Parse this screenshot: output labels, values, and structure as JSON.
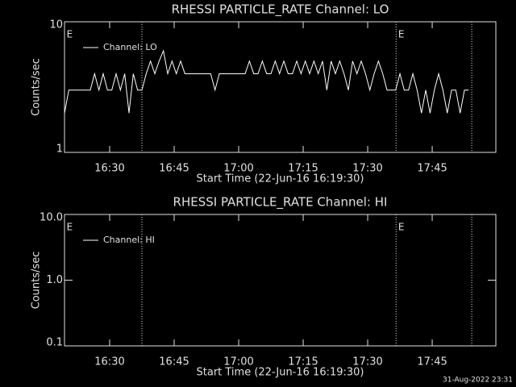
{
  "chart_data": [
    {
      "type": "line",
      "title": "RHESSI PARTICLE_RATE Channel: LO",
      "xlabel": "Start Time (22-Jun-16 16:19:30)",
      "ylabel": "Counts/sec",
      "log_y": true,
      "xlim": [
        0,
        100.3
      ],
      "ylim": [
        1,
        10
      ],
      "xticks": [
        {
          "value": 10.5,
          "label": "16:30"
        },
        {
          "value": 25.5,
          "label": "16:45"
        },
        {
          "value": 40.5,
          "label": "17:00"
        },
        {
          "value": 55.5,
          "label": "17:15"
        },
        {
          "value": 70.5,
          "label": "17:30"
        },
        {
          "value": 85.5,
          "label": "17:45"
        }
      ],
      "yticks": [
        1,
        10
      ],
      "vlines": [
        18,
        77.1,
        94.7
      ],
      "flags": [
        {
          "x": 0.5,
          "label": "E"
        },
        {
          "x": 77.6,
          "label": "E"
        }
      ],
      "x": [
        0,
        1,
        2,
        3,
        4,
        5,
        6,
        7,
        8,
        9,
        10,
        11,
        12,
        13,
        14,
        15,
        16,
        17,
        18,
        19,
        20,
        21,
        22,
        23,
        24,
        25,
        26,
        27,
        28,
        29,
        30,
        31,
        32,
        33,
        34,
        35,
        36,
        37,
        38,
        39,
        40,
        41,
        42,
        43,
        44,
        45,
        46,
        47,
        48,
        49,
        50,
        51,
        52,
        53,
        54,
        55,
        56,
        57,
        58,
        59,
        60,
        61,
        62,
        63,
        64,
        65,
        66,
        67,
        68,
        69,
        70,
        71,
        72,
        73,
        74,
        75,
        76,
        77,
        78,
        79,
        80,
        81,
        82,
        83,
        84,
        85,
        86,
        87,
        88,
        89,
        90,
        91,
        92,
        93,
        94
      ],
      "series": [
        {
          "name": "Channel: LO",
          "color": "#ffffff",
          "values": [
            2,
            3,
            3,
            3,
            3,
            3,
            3,
            4,
            3,
            4,
            3,
            3,
            4,
            3,
            4,
            2,
            4,
            3,
            3,
            4,
            5,
            4,
            5,
            6,
            4,
            5,
            4,
            5,
            4,
            4,
            4,
            4,
            4,
            4,
            4,
            3,
            4,
            4,
            4,
            4,
            4,
            4,
            4,
            5,
            4,
            4,
            5,
            4,
            4,
            5,
            4,
            5,
            4,
            4,
            5,
            4,
            5,
            4,
            5,
            4,
            5,
            3,
            5,
            4,
            5,
            4,
            3,
            5,
            4,
            5,
            4,
            3,
            4,
            5,
            4,
            3,
            3,
            3,
            4,
            3,
            3,
            4,
            3,
            2,
            3,
            2,
            3,
            4,
            3,
            2,
            3,
            3,
            2,
            3,
            3
          ]
        }
      ]
    },
    {
      "type": "line",
      "title": "RHESSI PARTICLE_RATE Channel: HI",
      "xlabel": "Start Time (22-Jun-16 16:19:30)",
      "ylabel": "Counts/sec",
      "log_y": true,
      "xlim": [
        0,
        100.3
      ],
      "ylim": [
        0.1,
        10
      ],
      "xticks": [
        {
          "value": 10.5,
          "label": "16:30"
        },
        {
          "value": 25.5,
          "label": "16:45"
        },
        {
          "value": 40.5,
          "label": "17:00"
        },
        {
          "value": 55.5,
          "label": "17:15"
        },
        {
          "value": 70.5,
          "label": "17:30"
        },
        {
          "value": 85.5,
          "label": "17:45"
        }
      ],
      "yticks": [
        {
          "value": 0.1,
          "label": "0.1"
        },
        {
          "value": 1,
          "label": "1.0"
        },
        {
          "value": 10,
          "label": "10.0"
        }
      ],
      "vlines": [
        18,
        77.1,
        94.7
      ],
      "flags": [
        {
          "x": 0.5,
          "label": "E"
        },
        {
          "x": 77.6,
          "label": "E"
        }
      ],
      "x": [],
      "series": [
        {
          "name": "Channel: HI",
          "color": "#ffffff",
          "values": []
        }
      ]
    }
  ],
  "footer": "31-Aug-2022 23:31"
}
